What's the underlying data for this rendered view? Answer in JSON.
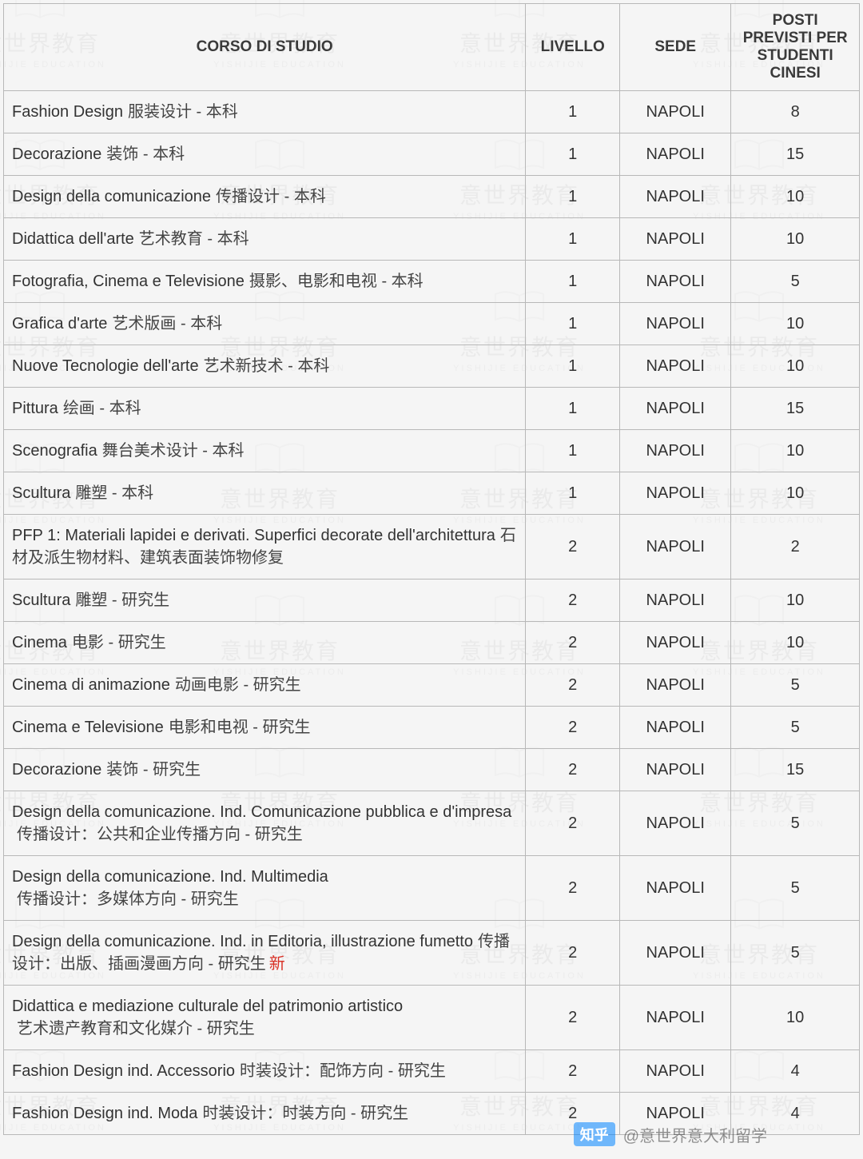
{
  "table": {
    "headers": {
      "corso": "CORSO DI STUDIO",
      "livello": "LIVELLO",
      "sede": "SEDE",
      "posti": "POSTI PREVISTI PER STUDENTI CINESI"
    },
    "rows": [
      {
        "it": "Fashion Design",
        "zh": "服装设计 - 本科",
        "liv": "1",
        "sede": "NAPOLI",
        "posti": "8",
        "red": ""
      },
      {
        "it": "Decorazione",
        "zh": "装饰 - 本科",
        "liv": "1",
        "sede": "NAPOLI",
        "posti": "15",
        "red": ""
      },
      {
        "it": "Design della comunicazione",
        "zh": "传播设计 - 本科",
        "liv": "1",
        "sede": "NAPOLI",
        "posti": "10",
        "red": ""
      },
      {
        "it": "Didattica dell'arte",
        "zh": "艺术教育 - 本科",
        "liv": "1",
        "sede": "NAPOLI",
        "posti": "10",
        "red": ""
      },
      {
        "it": "Fotografia, Cinema e Televisione",
        "zh": "摄影、电影和电视 - 本科",
        "liv": "1",
        "sede": "NAPOLI",
        "posti": "5",
        "red": ""
      },
      {
        "it": "Grafica d'arte",
        "zh": "艺术版画 - 本科",
        "liv": "1",
        "sede": "NAPOLI",
        "posti": "10",
        "red": ""
      },
      {
        "it": "Nuove Tecnologie dell'arte",
        "zh": "艺术新技术 - 本科",
        "liv": "1",
        "sede": "NAPOLI",
        "posti": "10",
        "red": ""
      },
      {
        "it": "Pittura",
        "zh": "绘画 - 本科",
        "liv": "1",
        "sede": "NAPOLI",
        "posti": "15",
        "red": ""
      },
      {
        "it": "Scenografia",
        "zh": "舞台美术设计 - 本科",
        "liv": "1",
        "sede": "NAPOLI",
        "posti": "10",
        "red": ""
      },
      {
        "it": "Scultura",
        "zh": "雕塑 - 本科",
        "liv": "1",
        "sede": "NAPOLI",
        "posti": "10",
        "red": ""
      },
      {
        "it": "PFP 1: Materiali lapidei e derivati. Superfici decorate dell'architettura",
        "zh": "石材及派生物材料、建筑表面装饰物修复",
        "liv": "2",
        "sede": "NAPOLI",
        "posti": "2",
        "red": ""
      },
      {
        "it": "Scultura",
        "zh": "雕塑 - 研究生",
        "liv": "2",
        "sede": "NAPOLI",
        "posti": "10",
        "red": ""
      },
      {
        "it": "Cinema",
        "zh": "电影 - 研究生",
        "liv": "2",
        "sede": "NAPOLI",
        "posti": "10",
        "red": ""
      },
      {
        "it": "Cinema di animazione",
        "zh": "动画电影 - 研究生",
        "liv": "2",
        "sede": "NAPOLI",
        "posti": "5",
        "red": ""
      },
      {
        "it": "Cinema e Televisione",
        "zh": "电影和电视 - 研究生",
        "liv": "2",
        "sede": "NAPOLI",
        "posti": "5",
        "red": ""
      },
      {
        "it": "Decorazione",
        "zh": "装饰 - 研究生",
        "liv": "2",
        "sede": "NAPOLI",
        "posti": "15",
        "red": ""
      },
      {
        "it": "Design della comunicazione. Ind. Comunicazione pubblica e d'impresa",
        "zh": "传播设计：公共和企业传播方向 - 研究生",
        "liv": "2",
        "sede": "NAPOLI",
        "posti": "5",
        "red": ""
      },
      {
        "it": "Design della comunicazione. Ind. Multimedia",
        "zh": "传播设计：多媒体方向 - 研究生",
        "liv": "2",
        "sede": "NAPOLI",
        "posti": "5",
        "red": "",
        "break": true
      },
      {
        "it": "Design della comunicazione. Ind. in Editoria, illustrazione fumetto",
        "zh": "传播设计：出版、插画漫画方向 - 研究生",
        "liv": "2",
        "sede": "NAPOLI",
        "posti": "5",
        "red": "新"
      },
      {
        "it": "Didattica e mediazione culturale del patrimonio artistico",
        "zh": "艺术遗产教育和文化媒介 - 研究生",
        "liv": "2",
        "sede": "NAPOLI",
        "posti": "10",
        "red": "",
        "break": true
      },
      {
        "it": "Fashion Design ind. Accessorio",
        "zh": "时装设计：配饰方向 - 研究生",
        "liv": "2",
        "sede": "NAPOLI",
        "posti": "4",
        "red": ""
      },
      {
        "it": "Fashion Design ind. Moda",
        "zh": "时装设计：时装方向 - 研究生",
        "liv": "2",
        "sede": "NAPOLI",
        "posti": "4",
        "red": ""
      }
    ]
  },
  "watermark": {
    "zh": "意世界教育",
    "en": "YISHIJIE EDUCATION"
  },
  "credit": {
    "logo": "知乎",
    "text": "@意世界意大利留学"
  },
  "style": {
    "border_color": "#b8b8b8",
    "header_font_size": 19,
    "cell_font_size": 20,
    "red_color": "#d93025"
  }
}
